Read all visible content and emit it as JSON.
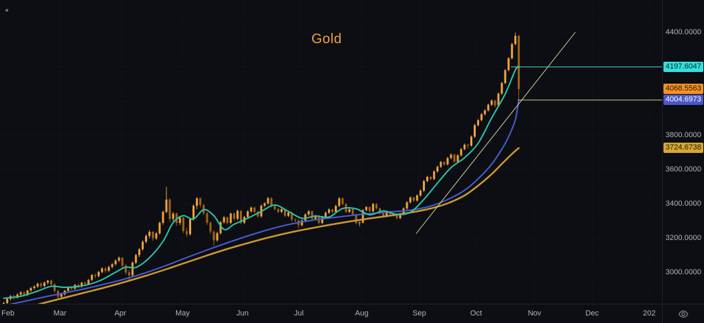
{
  "app": {
    "symbol_title": "Gold"
  },
  "icons": {
    "top_left": "dot-icon",
    "bottom_right_corner": "eye-icon"
  },
  "colors": {
    "background": "#0c0e13",
    "axis_text": "#b2b5be",
    "grid": "rgba(150,165,185,0.12)",
    "candle_up": "#efa23b",
    "candle_down": "#9e6218",
    "ma_fast": "#2ec4a6",
    "ma_mid": "#4a5bd4",
    "ma_slow": "#cc992e",
    "trendline": "#d8d4a0",
    "ray_cyan": "#35dfe0",
    "ray_yellow": "#cfcf7a",
    "title": "#f2a23c"
  },
  "price_axis": {
    "tick_labels": [
      "4400.0000",
      "3800.0000",
      "3600.0000",
      "3400.0000",
      "3200.0000",
      "3000.0000"
    ]
  },
  "time_axis": {
    "labels": [
      "Feb",
      "Mar",
      "Apr",
      "May",
      "Jun",
      "Jul",
      "Aug",
      "Sep",
      "Oct",
      "Nov",
      "Dec",
      "202"
    ]
  },
  "price_tags": [
    {
      "value": "4197.6047",
      "price": 4197.6047,
      "bg": "#35dfe0",
      "fg": "#06272a"
    },
    {
      "value": "4068.5563",
      "price": 4068.5563,
      "bg": "#f59123",
      "fg": "#271703"
    },
    {
      "value": "4004.6973",
      "price": 4004.6973,
      "bg": "#4a57c8",
      "fg": "#ffffff"
    },
    {
      "value": "3724.6738",
      "price": 3724.6738,
      "bg": "#d7a636",
      "fg": "#241b04"
    }
  ],
  "chart_data": {
    "type": "candlestick",
    "title": "Gold",
    "last_price": 4068.5563,
    "y_axis": {
      "range_top": 4588,
      "range_bottom": 2816,
      "grid_values": [
        4400,
        4200,
        4000,
        3800,
        3600,
        3400,
        3200,
        3000
      ],
      "visible_tick_values": [
        4400,
        3800,
        3600,
        3400,
        3200,
        3000
      ]
    },
    "x_axis": {
      "month_labels": [
        "Feb",
        "Mar",
        "Apr",
        "May",
        "Jun",
        "Jul",
        "Aug",
        "Sep",
        "Oct",
        "Nov",
        "Dec",
        "202"
      ],
      "month_start_indices": [
        0,
        17,
        35,
        53,
        71,
        88,
        106,
        123,
        140,
        157,
        174,
        191
      ]
    },
    "candles": [
      [
        2808,
        2828,
        2796,
        2820
      ],
      [
        2820,
        2851,
        2812,
        2845
      ],
      [
        2845,
        2868,
        2836,
        2861
      ],
      [
        2861,
        2869,
        2840,
        2852
      ],
      [
        2852,
        2877,
        2846,
        2870
      ],
      [
        2870,
        2890,
        2862,
        2882
      ],
      [
        2882,
        2889,
        2858,
        2869
      ],
      [
        2869,
        2899,
        2861,
        2893
      ],
      [
        2893,
        2914,
        2885,
        2908
      ],
      [
        2908,
        2925,
        2899,
        2917
      ],
      [
        2917,
        2940,
        2909,
        2933
      ],
      [
        2933,
        2941,
        2908,
        2920
      ],
      [
        2920,
        2946,
        2913,
        2939
      ],
      [
        2939,
        2956,
        2929,
        2951
      ],
      [
        2951,
        2958,
        2921,
        2930
      ],
      [
        2930,
        2936,
        2880,
        2891
      ],
      [
        2891,
        2899,
        2844,
        2858
      ],
      [
        2858,
        2879,
        2849,
        2872
      ],
      [
        2872,
        2898,
        2864,
        2892
      ],
      [
        2892,
        2917,
        2884,
        2911
      ],
      [
        2911,
        2919,
        2894,
        2904
      ],
      [
        2904,
        2932,
        2897,
        2926
      ],
      [
        2926,
        2933,
        2906,
        2917
      ],
      [
        2917,
        2945,
        2910,
        2939
      ],
      [
        2939,
        2947,
        2921,
        2932
      ],
      [
        2932,
        2961,
        2925,
        2955
      ],
      [
        2955,
        2990,
        2948,
        2984
      ],
      [
        2984,
        2993,
        2965,
        2978
      ],
      [
        2978,
        3008,
        2970,
        3001
      ],
      [
        3001,
        3029,
        2994,
        3022
      ],
      [
        3022,
        3031,
        2997,
        3009
      ],
      [
        3009,
        3038,
        3001,
        3031
      ],
      [
        3031,
        3054,
        3023,
        3047
      ],
      [
        3047,
        3075,
        3039,
        3068
      ],
      [
        3068,
        3092,
        3059,
        3085
      ],
      [
        3085,
        3088,
        3026,
        3038
      ],
      [
        3038,
        3049,
        2987,
        2999
      ],
      [
        2999,
        3014,
        2956,
        2982
      ],
      [
        2982,
        3064,
        2975,
        3056
      ],
      [
        3056,
        3108,
        3048,
        3100
      ],
      [
        3100,
        3141,
        3088,
        3134
      ],
      [
        3134,
        3186,
        3126,
        3178
      ],
      [
        3178,
        3220,
        3169,
        3212
      ],
      [
        3212,
        3245,
        3198,
        3236
      ],
      [
        3236,
        3240,
        3183,
        3198
      ],
      [
        3198,
        3234,
        3188,
        3227
      ],
      [
        3227,
        3296,
        3219,
        3288
      ],
      [
        3288,
        3361,
        3278,
        3352
      ],
      [
        3352,
        3498,
        3344,
        3424
      ],
      [
        3424,
        3432,
        3292,
        3310
      ],
      [
        3310,
        3351,
        3298,
        3342
      ],
      [
        3342,
        3349,
        3270,
        3288
      ],
      [
        3288,
        3327,
        3276,
        3319
      ],
      [
        3319,
        3322,
        3228,
        3240
      ],
      [
        3240,
        3259,
        3206,
        3222
      ],
      [
        3222,
        3318,
        3214,
        3310
      ],
      [
        3310,
        3396,
        3302,
        3388
      ],
      [
        3388,
        3438,
        3368,
        3431
      ],
      [
        3431,
        3436,
        3378,
        3392
      ],
      [
        3392,
        3399,
        3332,
        3344
      ],
      [
        3344,
        3351,
        3276,
        3289
      ],
      [
        3289,
        3295,
        3222,
        3237
      ],
      [
        3237,
        3244,
        3153,
        3186
      ],
      [
        3186,
        3236,
        3178,
        3228
      ],
      [
        3228,
        3299,
        3220,
        3292
      ],
      [
        3292,
        3328,
        3284,
        3320
      ],
      [
        3320,
        3326,
        3279,
        3288
      ],
      [
        3288,
        3349,
        3281,
        3342
      ],
      [
        3342,
        3348,
        3301,
        3312
      ],
      [
        3312,
        3365,
        3304,
        3358
      ],
      [
        3358,
        3362,
        3280,
        3289
      ],
      [
        3289,
        3329,
        3282,
        3322
      ],
      [
        3322,
        3362,
        3315,
        3355
      ],
      [
        3355,
        3384,
        3347,
        3377
      ],
      [
        3377,
        3383,
        3344,
        3352
      ],
      [
        3352,
        3359,
        3318,
        3326
      ],
      [
        3326,
        3395,
        3319,
        3388
      ],
      [
        3388,
        3409,
        3380,
        3402
      ],
      [
        3402,
        3440,
        3394,
        3432
      ],
      [
        3432,
        3437,
        3378,
        3386
      ],
      [
        3386,
        3393,
        3360,
        3368
      ],
      [
        3368,
        3374,
        3344,
        3352
      ],
      [
        3352,
        3375,
        3345,
        3368
      ],
      [
        3368,
        3372,
        3321,
        3329
      ],
      [
        3329,
        3355,
        3322,
        3348
      ],
      [
        3348,
        3352,
        3295,
        3307
      ],
      [
        3307,
        3314,
        3292,
        3302
      ],
      [
        3302,
        3309,
        3255,
        3274
      ],
      [
        3274,
        3309,
        3267,
        3302
      ],
      [
        3302,
        3344,
        3295,
        3337
      ],
      [
        3337,
        3363,
        3330,
        3356
      ],
      [
        3356,
        3360,
        3303,
        3311
      ],
      [
        3311,
        3335,
        3304,
        3328
      ],
      [
        3328,
        3333,
        3279,
        3287
      ],
      [
        3287,
        3329,
        3281,
        3322
      ],
      [
        3322,
        3354,
        3315,
        3347
      ],
      [
        3347,
        3373,
        3340,
        3366
      ],
      [
        3366,
        3371,
        3344,
        3352
      ],
      [
        3352,
        3394,
        3346,
        3387
      ],
      [
        3387,
        3439,
        3380,
        3431
      ],
      [
        3431,
        3436,
        3390,
        3398
      ],
      [
        3398,
        3402,
        3344,
        3352
      ],
      [
        3352,
        3375,
        3345,
        3368
      ],
      [
        3368,
        3372,
        3330,
        3338
      ],
      [
        3338,
        3342,
        3279,
        3287
      ],
      [
        3287,
        3297,
        3268,
        3290
      ],
      [
        3290,
        3369,
        3284,
        3362
      ],
      [
        3362,
        3387,
        3355,
        3380
      ],
      [
        3380,
        3385,
        3348,
        3356
      ],
      [
        3356,
        3405,
        3349,
        3398
      ],
      [
        3398,
        3403,
        3364,
        3372
      ],
      [
        3372,
        3377,
        3336,
        3344
      ],
      [
        3344,
        3349,
        3320,
        3328
      ],
      [
        3328,
        3359,
        3321,
        3352
      ],
      [
        3352,
        3357,
        3332,
        3340
      ],
      [
        3340,
        3346,
        3325,
        3333
      ],
      [
        3333,
        3338,
        3308,
        3316
      ],
      [
        3316,
        3346,
        3309,
        3339
      ],
      [
        3339,
        3379,
        3332,
        3372
      ],
      [
        3372,
        3415,
        3365,
        3408
      ],
      [
        3408,
        3443,
        3400,
        3436
      ],
      [
        3436,
        3441,
        3410,
        3418
      ],
      [
        3418,
        3455,
        3411,
        3448
      ],
      [
        3448,
        3483,
        3441,
        3476
      ],
      [
        3476,
        3539,
        3469,
        3532
      ],
      [
        3532,
        3563,
        3525,
        3556
      ],
      [
        3556,
        3561,
        3536,
        3544
      ],
      [
        3544,
        3595,
        3537,
        3588
      ],
      [
        3588,
        3622,
        3581,
        3615
      ],
      [
        3615,
        3650,
        3608,
        3643
      ],
      [
        3643,
        3648,
        3621,
        3629
      ],
      [
        3629,
        3673,
        3622,
        3666
      ],
      [
        3666,
        3693,
        3659,
        3686
      ],
      [
        3686,
        3691,
        3638,
        3645
      ],
      [
        3645,
        3689,
        3638,
        3682
      ],
      [
        3682,
        3725,
        3675,
        3718
      ],
      [
        3718,
        3751,
        3711,
        3744
      ],
      [
        3744,
        3749,
        3722,
        3739
      ],
      [
        3739,
        3798,
        3732,
        3791
      ],
      [
        3791,
        3865,
        3784,
        3858
      ],
      [
        3858,
        3894,
        3851,
        3887
      ],
      [
        3887,
        3929,
        3880,
        3922
      ],
      [
        3922,
        3951,
        3915,
        3944
      ],
      [
        3944,
        3984,
        3937,
        3977
      ],
      [
        3977,
        4008,
        3970,
        4001
      ],
      [
        4001,
        4006,
        3961,
        3973
      ],
      [
        3973,
        4049,
        3966,
        4042
      ],
      [
        4042,
        4111,
        4035,
        4104
      ],
      [
        4104,
        4186,
        4097,
        4179
      ],
      [
        4179,
        4255,
        4172,
        4248
      ],
      [
        4248,
        4338,
        4241,
        4331
      ],
      [
        4331,
        4398,
        4324,
        4379
      ],
      [
        4379,
        4385,
        4004,
        4068.56
      ]
    ],
    "overlays": {
      "ma_fast": {
        "name": "fast-ma",
        "color": "#2ec4a6",
        "width": 2,
        "last_value": 4197.6,
        "points": [
          [
            0,
            2848
          ],
          [
            5,
            2860
          ],
          [
            10,
            2890
          ],
          [
            14,
            2918
          ],
          [
            18,
            2912
          ],
          [
            23,
            2920
          ],
          [
            28,
            2948
          ],
          [
            33,
            3000
          ],
          [
            36,
            3030
          ],
          [
            39,
            3028
          ],
          [
            43,
            3085
          ],
          [
            47,
            3180
          ],
          [
            50,
            3290
          ],
          [
            53,
            3330
          ],
          [
            56,
            3310
          ],
          [
            59,
            3365
          ],
          [
            62,
            3330
          ],
          [
            65,
            3250
          ],
          [
            68,
            3280
          ],
          [
            72,
            3315
          ],
          [
            76,
            3355
          ],
          [
            80,
            3392
          ],
          [
            84,
            3355
          ],
          [
            88,
            3315
          ],
          [
            92,
            3328
          ],
          [
            96,
            3322
          ],
          [
            100,
            3372
          ],
          [
            104,
            3370
          ],
          [
            108,
            3335
          ],
          [
            112,
            3358
          ],
          [
            116,
            3338
          ],
          [
            120,
            3350
          ],
          [
            124,
            3425
          ],
          [
            128,
            3520
          ],
          [
            132,
            3610
          ],
          [
            136,
            3668
          ],
          [
            140,
            3752
          ],
          [
            144,
            3900
          ],
          [
            148,
            4040
          ],
          [
            151,
            4180
          ],
          [
            152,
            4197.6
          ]
        ]
      },
      "ma_mid": {
        "name": "mid-ma",
        "color": "#4a5bd4",
        "width": 2,
        "last_value": 4004.6973,
        "points": [
          [
            0,
            2806
          ],
          [
            6,
            2830
          ],
          [
            12,
            2856
          ],
          [
            18,
            2880
          ],
          [
            24,
            2904
          ],
          [
            30,
            2932
          ],
          [
            36,
            2962
          ],
          [
            42,
            2998
          ],
          [
            48,
            3040
          ],
          [
            54,
            3086
          ],
          [
            60,
            3130
          ],
          [
            66,
            3172
          ],
          [
            72,
            3212
          ],
          [
            78,
            3248
          ],
          [
            84,
            3278
          ],
          [
            90,
            3300
          ],
          [
            96,
            3316
          ],
          [
            102,
            3330
          ],
          [
            108,
            3342
          ],
          [
            114,
            3352
          ],
          [
            120,
            3362
          ],
          [
            126,
            3386
          ],
          [
            131,
            3424
          ],
          [
            136,
            3478
          ],
          [
            140,
            3545
          ],
          [
            144,
            3630
          ],
          [
            147,
            3718
          ],
          [
            149,
            3790
          ],
          [
            151,
            3890
          ],
          [
            152,
            4004.7
          ]
        ]
      },
      "ma_slow": {
        "name": "slow-ma",
        "color": "#cc992e",
        "width": 2.5,
        "last_value": 3724.6738,
        "points": [
          [
            6,
            2790
          ],
          [
            12,
            2822
          ],
          [
            18,
            2852
          ],
          [
            24,
            2882
          ],
          [
            30,
            2912
          ],
          [
            36,
            2945
          ],
          [
            42,
            2980
          ],
          [
            48,
            3018
          ],
          [
            54,
            3058
          ],
          [
            60,
            3098
          ],
          [
            66,
            3136
          ],
          [
            72,
            3170
          ],
          [
            78,
            3202
          ],
          [
            84,
            3230
          ],
          [
            90,
            3254
          ],
          [
            96,
            3276
          ],
          [
            102,
            3296
          ],
          [
            108,
            3314
          ],
          [
            114,
            3330
          ],
          [
            120,
            3348
          ],
          [
            126,
            3372
          ],
          [
            131,
            3402
          ],
          [
            136,
            3448
          ],
          [
            140,
            3505
          ],
          [
            144,
            3572
          ],
          [
            147,
            3632
          ],
          [
            150,
            3690
          ],
          [
            152,
            3724.7
          ]
        ]
      }
    },
    "drawings": {
      "trendline": {
        "color": "#d8d4a0",
        "from": [
          122,
          3225
        ],
        "to": [
          169,
          4400
        ]
      },
      "h_rays": [
        {
          "color": "#35dfe0",
          "price": 4197.6047,
          "from_index": 150
        },
        {
          "color": "#cfcf7a",
          "price": 4004.6973,
          "from_index": 152
        }
      ]
    }
  }
}
